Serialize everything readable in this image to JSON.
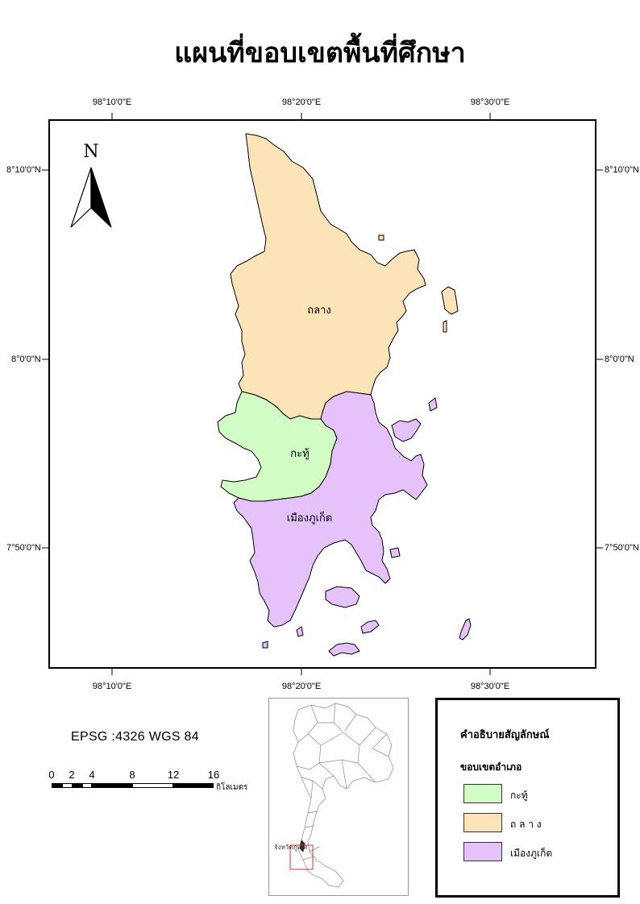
{
  "title": "แผนที่ขอบเขตพื้นที่ศึกษา",
  "graticule": {
    "top_longitudes": [
      "98°10'0\"E",
      "98°20'0\"E",
      "98°30'0\"E"
    ],
    "bottom_longitudes": [
      "98°10'0\"E",
      "98°20'0\"E",
      "98°30'0\"E"
    ],
    "left_latitudes": [
      "8°10'0\"N",
      "8°0'0\"N",
      "7°50'0\"N"
    ],
    "right_latitudes": [
      "8°10'0\"N",
      "8°0'0\"N",
      "7°50'0\"N"
    ]
  },
  "north_arrow": {
    "letter": "N",
    "icon": "north-arrow-icon"
  },
  "districts": [
    {
      "name": "ถลาง",
      "color": "#FCE3B8"
    },
    {
      "name": "กะทู้",
      "color": "#D2FDC4"
    },
    {
      "name": "เมืองภูเก็ต",
      "color": "#E6C2FB"
    }
  ],
  "projection": "EPSG :4326 WGS 84",
  "scalebar": {
    "labels": [
      "0",
      "2",
      "4",
      "8",
      "12",
      "16"
    ],
    "unit": "กิโลเมตร"
  },
  "inset": {
    "label": "จังหวัดภูเก็ต"
  },
  "legend": {
    "title": "คำอธิบายสัญลักษณ์",
    "subtitle": "ขอบเขตอำเภอ",
    "items": [
      {
        "label": "กะทู้",
        "color": "#D2FDC4"
      },
      {
        "label": "ถ ล า ง",
        "color": "#FCE3B8"
      },
      {
        "label": "เมืองภูเก็ต",
        "color": "#E6C2FB"
      }
    ]
  }
}
